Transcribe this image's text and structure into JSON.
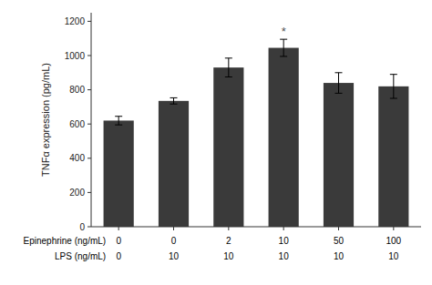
{
  "chart_data": {
    "type": "bar",
    "ylabel": "TNFα expression (pg/mL)",
    "values": [
      620,
      735,
      930,
      1045,
      840,
      820
    ],
    "errors": [
      25,
      18,
      55,
      50,
      60,
      70
    ],
    "color": "#3a3a3a",
    "ylim": [
      0,
      1250
    ],
    "yticks": [
      0,
      200,
      400,
      600,
      800,
      1000,
      1200
    ],
    "grid": false,
    "category_rows": [
      {
        "name": "Epinephrine (ng/mL)",
        "labels": [
          "0",
          "0",
          "2",
          "10",
          "50",
          "100"
        ]
      },
      {
        "name": "LPS (ng/mL)",
        "labels": [
          "0",
          "10",
          "10",
          "10",
          "10",
          "10"
        ]
      }
    ],
    "annotations": [
      {
        "text": "*",
        "index": 3
      }
    ]
  }
}
